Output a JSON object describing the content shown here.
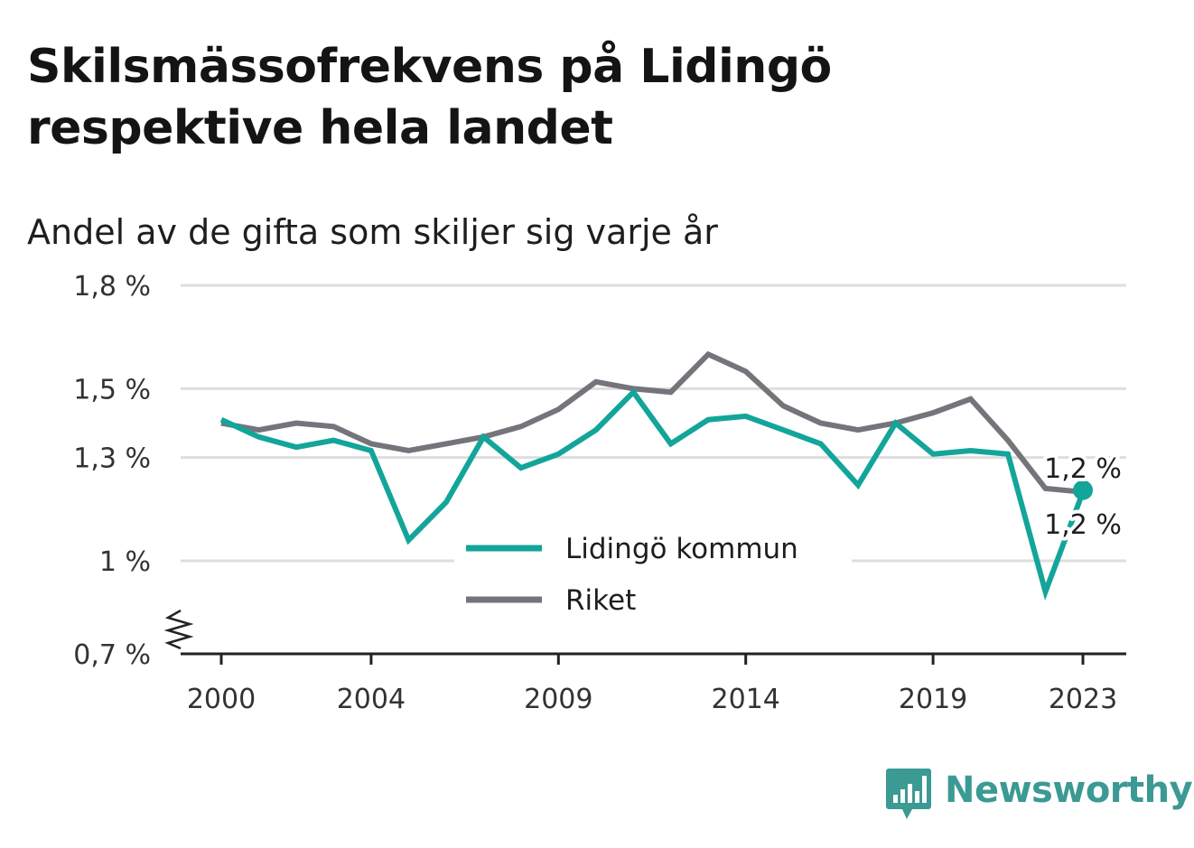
{
  "title": "Skilsmässofrekvens på Lidingö respektive hela landet",
  "subtitle": "Andel av de gifta som skiljer sig varje år",
  "brand": {
    "name": "Newsworthy",
    "icon": "bar-chart-speech-bubble-icon",
    "color": "#3b9a93"
  },
  "chart_data": {
    "type": "line",
    "x": [
      2000,
      2001,
      2002,
      2003,
      2004,
      2005,
      2006,
      2007,
      2008,
      2009,
      2010,
      2011,
      2012,
      2013,
      2014,
      2015,
      2016,
      2017,
      2018,
      2019,
      2020,
      2021,
      2022,
      2023
    ],
    "x_ticks": [
      2000,
      2004,
      2009,
      2014,
      2019,
      2023
    ],
    "x_tick_labels": [
      "2000",
      "2004",
      "2009",
      "2014",
      "2019",
      "2023"
    ],
    "y_ticks": [
      0.7,
      1.0,
      1.3,
      1.5,
      1.8
    ],
    "y_tick_labels": [
      "0,7 %",
      "1 %",
      "1,3 %",
      "1,5 %",
      "1,8 %"
    ],
    "y_axis_break": true,
    "grid": true,
    "legend_position": "center",
    "series": [
      {
        "name": "Lidingö kommun",
        "color": "#13a59a",
        "values": [
          1.41,
          1.36,
          1.33,
          1.35,
          1.32,
          1.06,
          1.17,
          1.36,
          1.27,
          1.31,
          1.38,
          1.49,
          1.34,
          1.41,
          1.42,
          1.38,
          1.34,
          1.22,
          1.4,
          1.31,
          1.32,
          1.31,
          0.9,
          1.2
        ],
        "end_label": "1,2 %"
      },
      {
        "name": "Riket",
        "color": "#75747b",
        "values": [
          1.4,
          1.38,
          1.4,
          1.39,
          1.34,
          1.32,
          1.34,
          1.36,
          1.39,
          1.44,
          1.52,
          1.5,
          1.49,
          1.6,
          1.55,
          1.45,
          1.4,
          1.38,
          1.4,
          1.43,
          1.47,
          1.35,
          1.21,
          1.2
        ],
        "end_label": "1,2 %"
      }
    ]
  }
}
